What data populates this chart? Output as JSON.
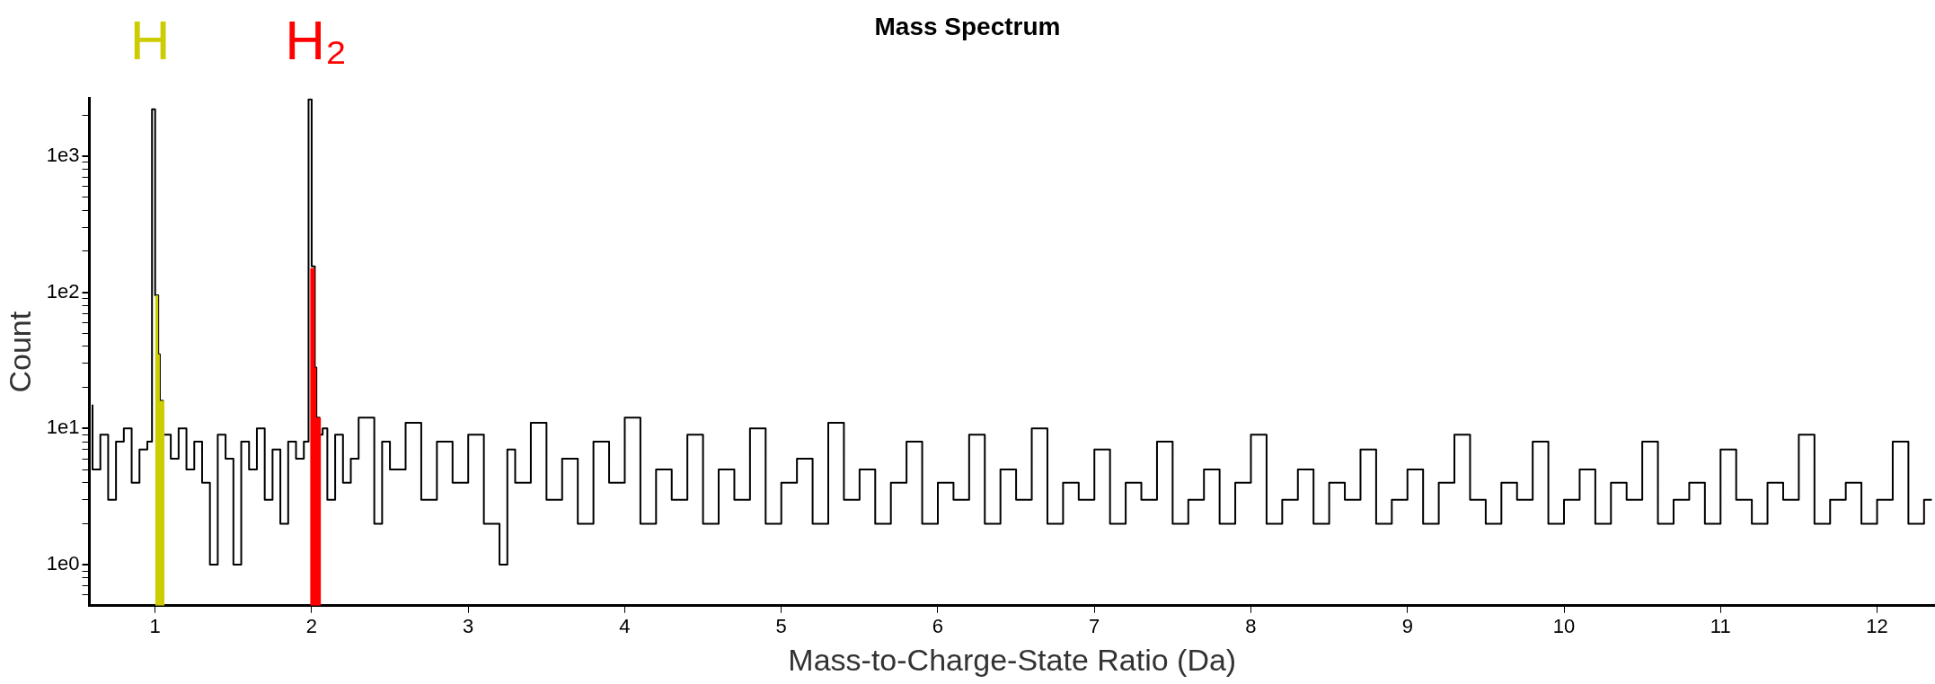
{
  "chart_data": {
    "type": "step",
    "title": "Mass Spectrum",
    "xlabel": "Mass-to-Charge-State Ratio (Da)",
    "ylabel": "Count",
    "log": "y",
    "grid": false,
    "legend": false,
    "marker": "none",
    "xlim": [
      0.58,
      12.37
    ],
    "xticks": [
      1,
      2,
      3,
      4,
      5,
      6,
      7,
      8,
      9,
      10,
      11,
      12
    ],
    "ylim": [
      0.5,
      2650
    ],
    "yticks": [
      {
        "value": 0.6,
        "label": null
      },
      {
        "value": 0.7,
        "label": null
      },
      {
        "value": 0.8,
        "label": null
      },
      {
        "value": 0.9,
        "label": null
      },
      {
        "value": 1,
        "label": "1e0"
      },
      {
        "value": 2,
        "label": null
      },
      {
        "value": 3,
        "label": null
      },
      {
        "value": 4,
        "label": null
      },
      {
        "value": 5,
        "label": null
      },
      {
        "value": 6,
        "label": null
      },
      {
        "value": 7,
        "label": null
      },
      {
        "value": 8,
        "label": null
      },
      {
        "value": 9,
        "label": null
      },
      {
        "value": 10,
        "label": "1e1"
      },
      {
        "value": 20,
        "label": null
      },
      {
        "value": 30,
        "label": null
      },
      {
        "value": 40,
        "label": null
      },
      {
        "value": 50,
        "label": null
      },
      {
        "value": 60,
        "label": null
      },
      {
        "value": 70,
        "label": null
      },
      {
        "value": 80,
        "label": null
      },
      {
        "value": 90,
        "label": null
      },
      {
        "value": 100,
        "label": "1e2"
      },
      {
        "value": 200,
        "label": null
      },
      {
        "value": 300,
        "label": null
      },
      {
        "value": 400,
        "label": null
      },
      {
        "value": 500,
        "label": null
      },
      {
        "value": 600,
        "label": null
      },
      {
        "value": 700,
        "label": null
      },
      {
        "value": 800,
        "label": null
      },
      {
        "value": 900,
        "label": null
      },
      {
        "value": 1000,
        "label": "1e3"
      },
      {
        "value": 2000,
        "label": null
      }
    ],
    "series": [
      {
        "type": "area",
        "name": "H",
        "color": "#cccc00",
        "x": [
          1.0,
          1.02,
          1.03,
          1.05,
          1.06
        ],
        "values": [
          70,
          95,
          35,
          16,
          16
        ]
      },
      {
        "type": "area",
        "name": "H₂",
        "color": "#ff0000",
        "x": [
          1.99,
          2.0,
          2.02,
          2.03,
          2.05,
          2.06
        ],
        "values": [
          8,
          150,
          150,
          28,
          12,
          12
        ]
      },
      {
        "color": "#000000",
        "x": [
          0.6,
          0.65,
          0.7,
          0.75,
          0.8,
          0.85,
          0.9,
          0.95,
          0.98,
          1.0,
          1.02,
          1.03,
          1.05,
          1.07,
          1.1,
          1.15,
          1.2,
          1.25,
          1.3,
          1.35,
          1.4,
          1.45,
          1.5,
          1.55,
          1.6,
          1.65,
          1.7,
          1.75,
          1.8,
          1.85,
          1.9,
          1.95,
          1.98,
          2.0,
          2.02,
          2.03,
          2.05,
          2.07,
          2.1,
          2.15,
          2.2,
          2.25,
          2.3,
          2.4,
          2.45,
          2.5,
          2.6,
          2.7,
          2.8,
          2.9,
          3.0,
          3.1,
          3.2,
          3.25,
          3.3,
          3.4,
          3.5,
          3.6,
          3.7,
          3.8,
          3.9,
          4.0,
          4.1,
          4.2,
          4.3,
          4.4,
          4.5,
          4.6,
          4.7,
          4.8,
          4.9,
          5.0,
          5.1,
          5.2,
          5.3,
          5.4,
          5.5,
          5.6,
          5.7,
          5.8,
          5.9,
          6.0,
          6.1,
          6.2,
          6.3,
          6.4,
          6.5,
          6.6,
          6.7,
          6.8,
          6.9,
          7.0,
          7.1,
          7.2,
          7.3,
          7.4,
          7.5,
          7.6,
          7.7,
          7.8,
          7.9,
          8.0,
          8.1,
          8.2,
          8.3,
          8.4,
          8.5,
          8.6,
          8.7,
          8.8,
          8.9,
          9.0,
          9.1,
          9.2,
          9.3,
          9.4,
          9.5,
          9.6,
          9.7,
          9.8,
          9.9,
          10.0,
          10.1,
          10.2,
          10.3,
          10.4,
          10.5,
          10.6,
          10.7,
          10.8,
          10.9,
          11.0,
          11.1,
          11.2,
          11.3,
          11.4,
          11.5,
          11.6,
          11.7,
          11.8,
          11.9,
          12.0,
          12.1,
          12.2,
          12.3,
          12.35
        ],
        "values": [
          15,
          5,
          9,
          3,
          8,
          10,
          4,
          7,
          8,
          2200,
          95,
          35,
          16,
          9,
          9,
          6,
          10,
          5,
          8,
          4,
          1,
          9,
          6,
          1,
          8,
          5,
          10,
          3,
          7,
          2,
          8,
          6,
          8,
          2600,
          155,
          28,
          12,
          9,
          10,
          3,
          9,
          4,
          6,
          12,
          2,
          8,
          5,
          11,
          3,
          8,
          4,
          9,
          2,
          1,
          7,
          4,
          11,
          3,
          6,
          2,
          8,
          4,
          12,
          2,
          5,
          3,
          9,
          2,
          5,
          3,
          10,
          2,
          4,
          6,
          2,
          11,
          3,
          5,
          2,
          4,
          8,
          2,
          4,
          3,
          9,
          2,
          5,
          3,
          10,
          2,
          4,
          3,
          7,
          2,
          4,
          3,
          8,
          2,
          3,
          5,
          2,
          4,
          9,
          2,
          3,
          5,
          2,
          4,
          3,
          7,
          2,
          3,
          5,
          2,
          4,
          9,
          3,
          2,
          4,
          3,
          8,
          2,
          3,
          5,
          2,
          4,
          3,
          8,
          2,
          3,
          4,
          2,
          7,
          3,
          2,
          4,
          3,
          9,
          2,
          3,
          4,
          2,
          3,
          8,
          2,
          3
        ]
      }
    ]
  }
}
